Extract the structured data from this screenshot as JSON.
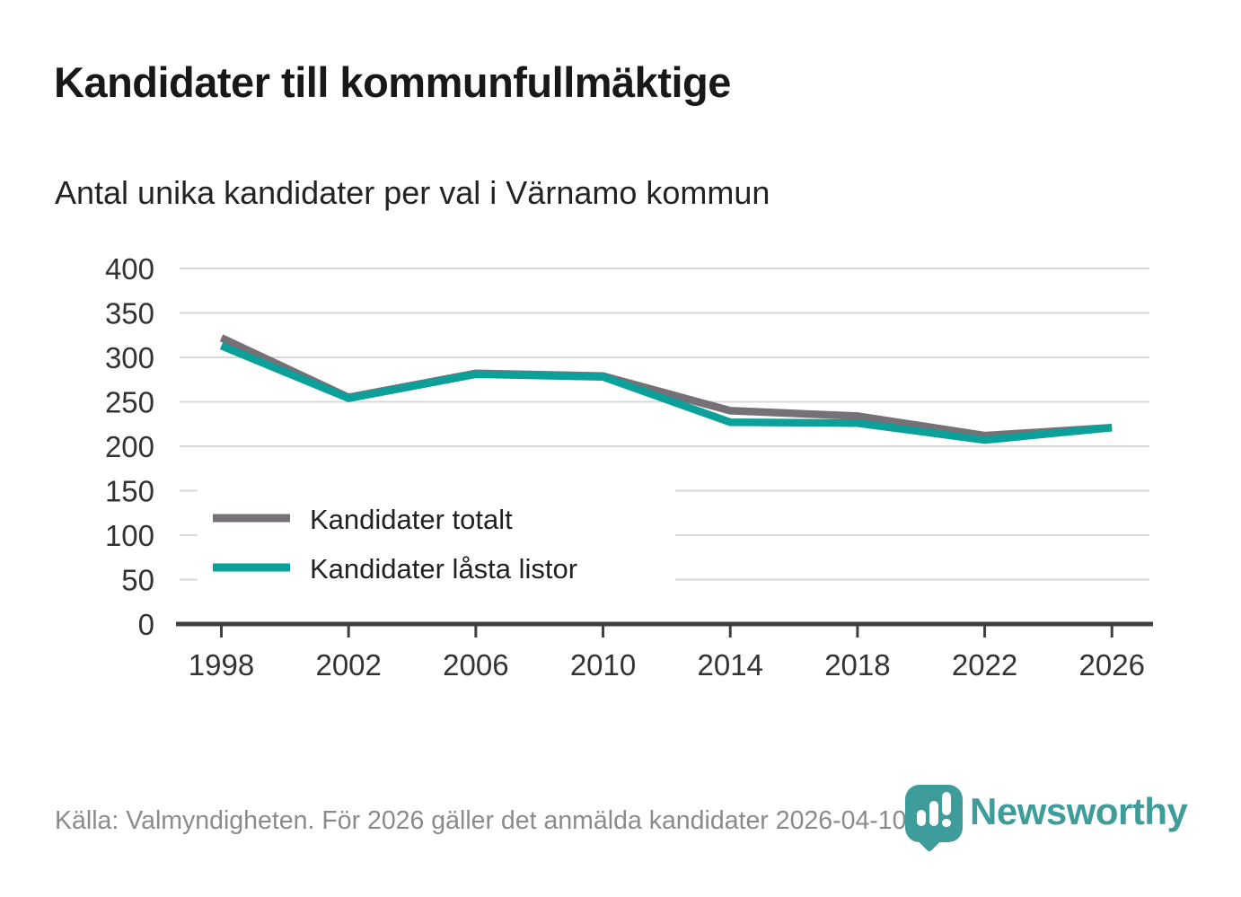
{
  "header": {
    "title": "Kandidater till kommunfullmäktige",
    "subtitle": "Antal unika kandidater per val i Värnamo kommun"
  },
  "chart_data": {
    "type": "line",
    "x": [
      1998,
      2002,
      2006,
      2010,
      2014,
      2018,
      2022,
      2026
    ],
    "series": [
      {
        "name": "Kandidater totalt",
        "color": "#767177",
        "values": [
          322,
          255,
          282,
          279,
          240,
          234,
          212,
          221
        ]
      },
      {
        "name": "Kandidater låsta listor",
        "color": "#0ba099",
        "values": [
          313,
          254,
          281,
          278,
          227,
          226,
          207,
          221
        ]
      }
    ],
    "ylim": [
      0,
      400
    ],
    "ytick_step": 50,
    "grid": true,
    "legend_position": "inside-left-bottom",
    "gridline_color": "#d9d9d9",
    "axis_color": "#3f3f3f",
    "tick_label_color": "#333333",
    "legend_text_color": "#212121"
  },
  "footer": {
    "source": "Källa: Valmyndigheten. För 2026 gäller det anmälda kandidater 2026-04-10.",
    "brand": "Newsworthy",
    "brand_color": "#3e9d9a"
  }
}
